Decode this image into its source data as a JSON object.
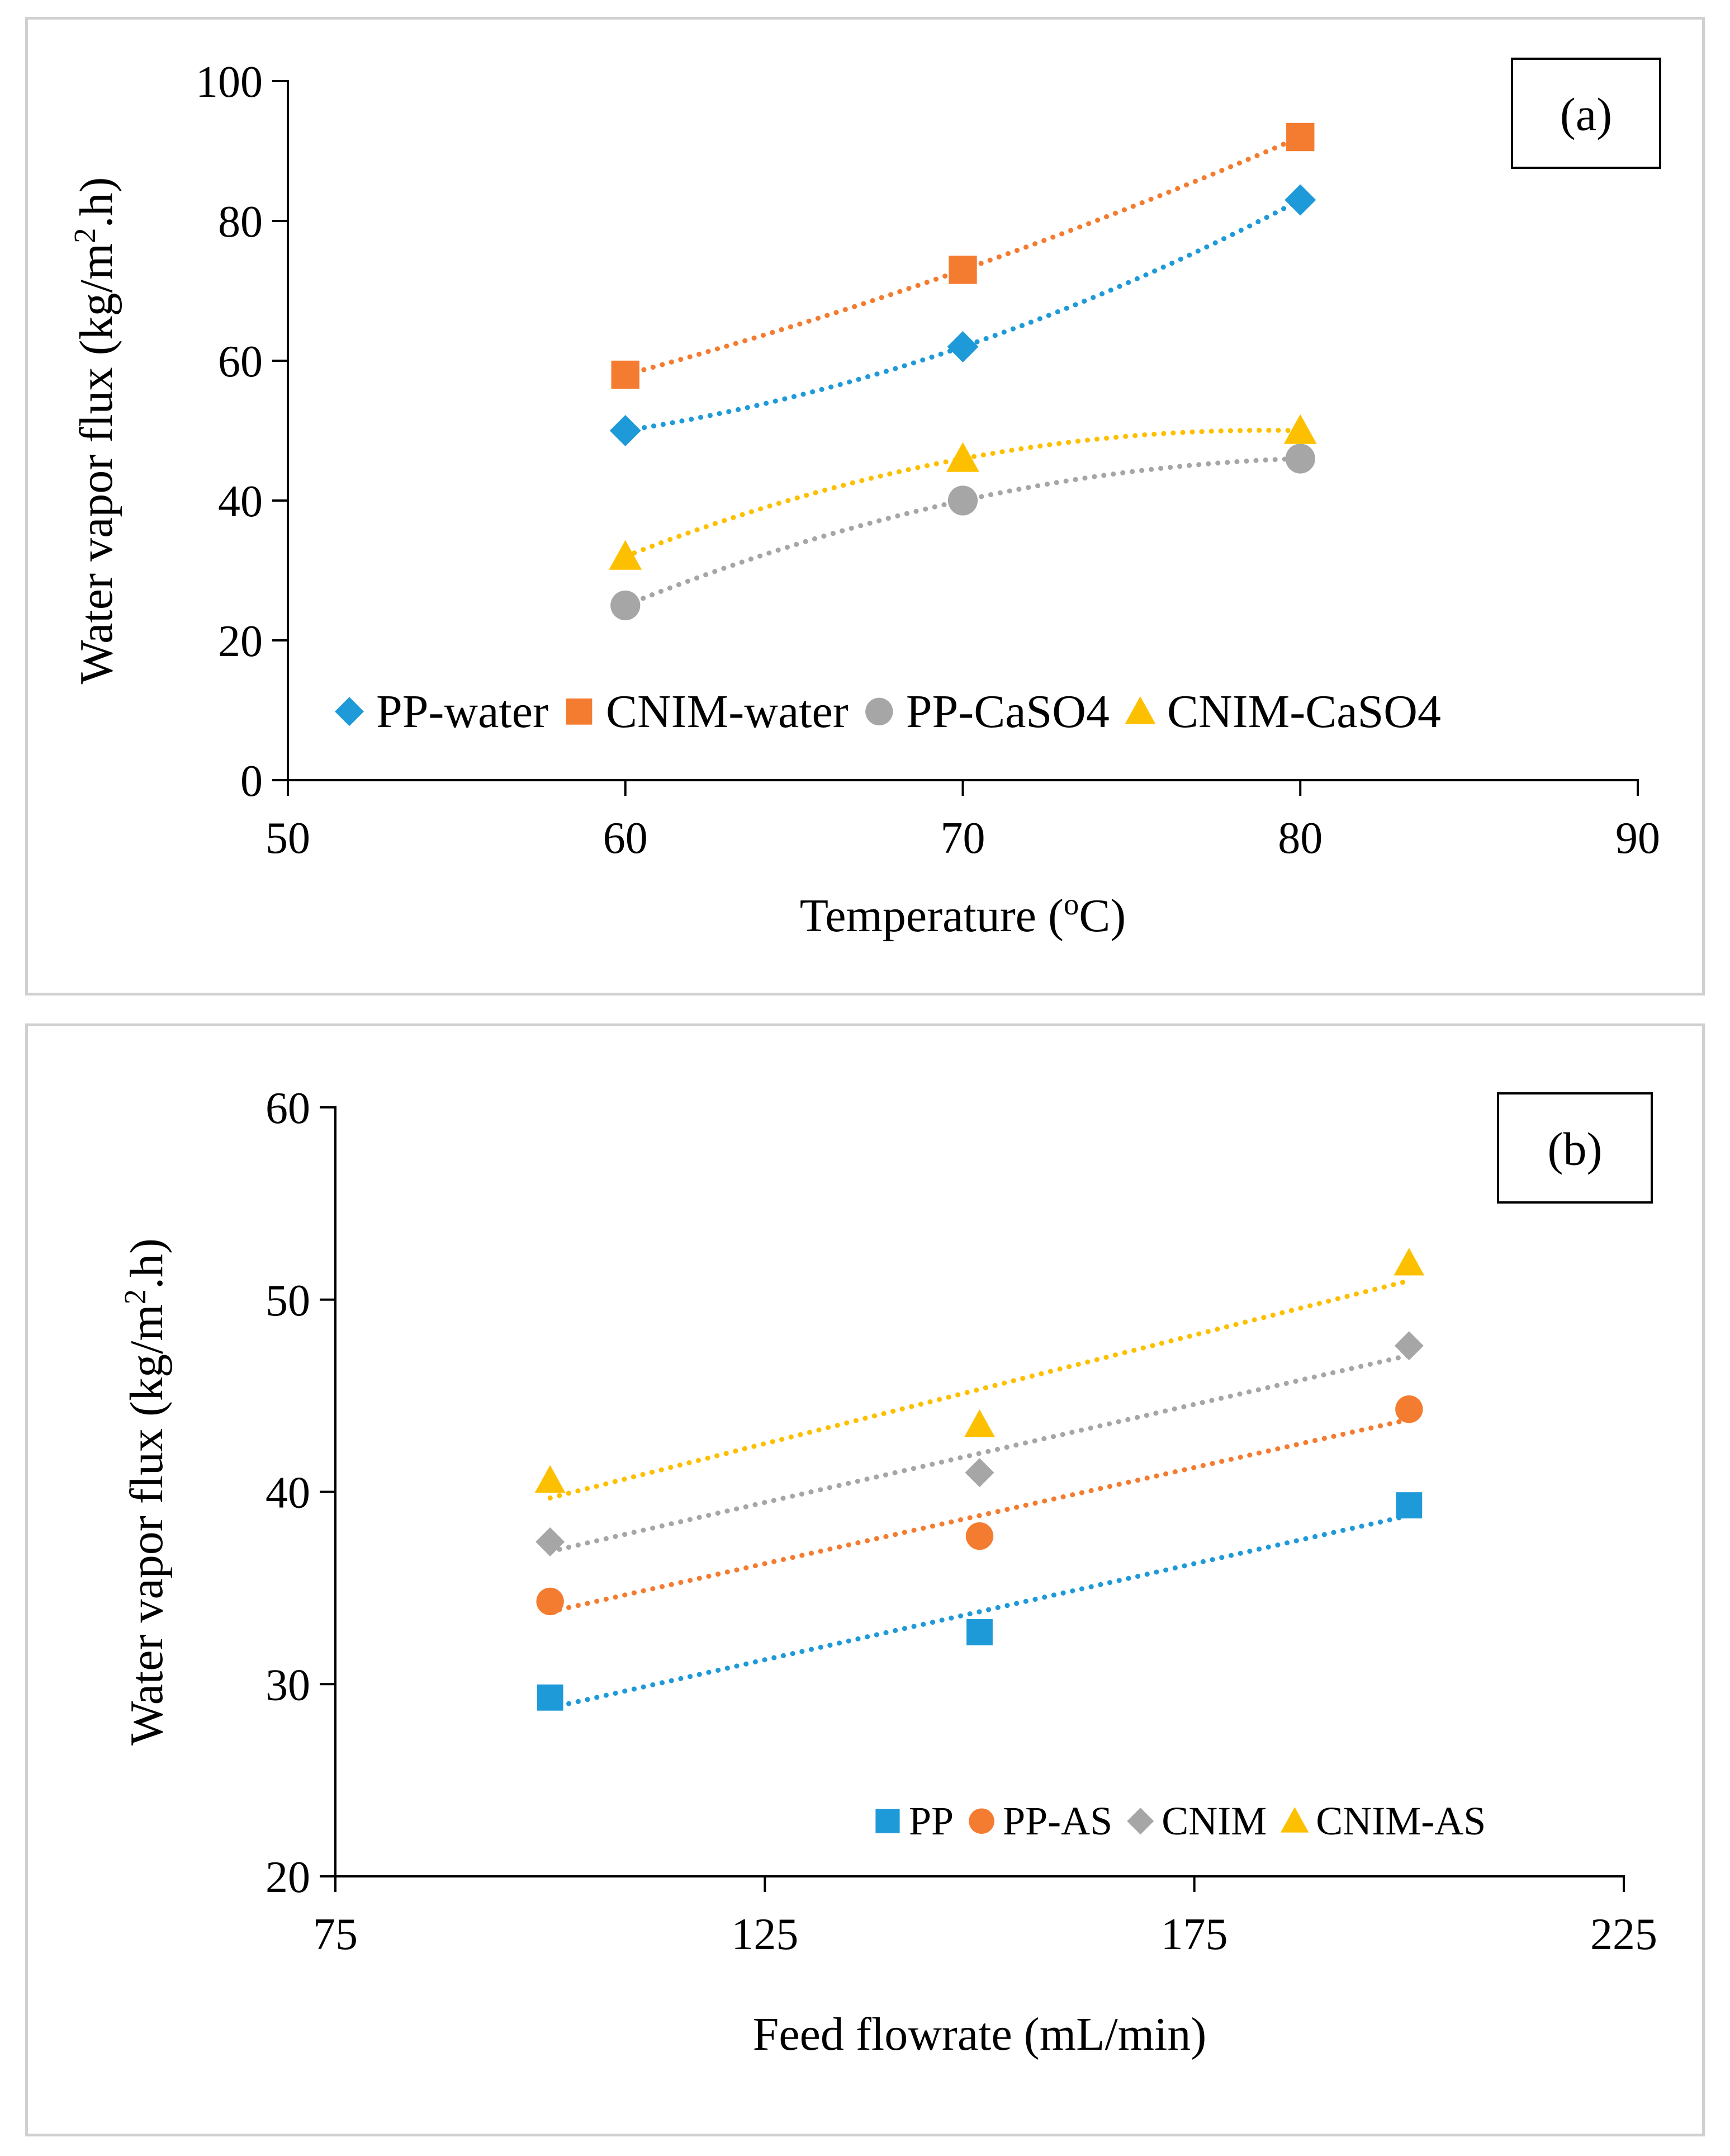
{
  "colors": {
    "blue": "#1f9ad8",
    "orange": "#f47c30",
    "gray": "#a6a6a6",
    "yellow": "#fdc000",
    "axis": "#000000",
    "frame": "#d0d0d0"
  },
  "chart_data": [
    {
      "type": "scatter",
      "panel_label": "(a)",
      "xlabel": "Temperature (",
      "xlabel_sup": "o",
      "xlabel_tail": "C)",
      "ylabel": "Water vapor flux (kg/m",
      "ylabel_sup": "2",
      "ylabel_tail": ".h)",
      "xlim": [
        50,
        90
      ],
      "ylim": [
        0,
        100
      ],
      "xticks": [
        50,
        60,
        70,
        80,
        90
      ],
      "yticks": [
        0,
        20,
        40,
        60,
        80,
        100
      ],
      "grid": false,
      "legend_position": "bottom",
      "trendline": "polynomial, dotted",
      "series": [
        {
          "name": "PP-water",
          "marker": "diamond",
          "color": "#1f9ad8",
          "x": [
            60,
            70,
            80
          ],
          "y": [
            50,
            62,
            83
          ]
        },
        {
          "name": "CNIM-water",
          "marker": "square",
          "color": "#f47c30",
          "x": [
            60,
            70,
            80
          ],
          "y": [
            58,
            73,
            92
          ]
        },
        {
          "name": "PP-CaSO4",
          "marker": "circle",
          "color": "#a6a6a6",
          "x": [
            60,
            70,
            80
          ],
          "y": [
            25,
            40,
            46
          ]
        },
        {
          "name": "CNIM-CaSO4",
          "marker": "triangle",
          "color": "#fdc000",
          "x": [
            60,
            70,
            80
          ],
          "y": [
            32,
            46,
            50
          ]
        }
      ]
    },
    {
      "type": "scatter",
      "panel_label": "(b)",
      "xlabel": "Feed flowrate (mL/min)",
      "xlabel_sup": "",
      "xlabel_tail": "",
      "ylabel": "Water vapor flux (kg/m",
      "ylabel_sup": "2",
      "ylabel_tail": ".h)",
      "xlim": [
        75,
        225
      ],
      "ylim": [
        20,
        60
      ],
      "xticks": [
        75,
        125,
        175,
        225
      ],
      "yticks": [
        20,
        30,
        40,
        50,
        60
      ],
      "grid": false,
      "legend_position": "bottom-right",
      "trendline": "linear, dotted",
      "series": [
        {
          "name": "PP",
          "marker": "square",
          "color": "#1f9ad8",
          "x": [
            100,
            150,
            200
          ],
          "y": [
            29.3,
            32.7,
            39.3
          ]
        },
        {
          "name": "PP-AS",
          "marker": "circle",
          "color": "#f47c30",
          "x": [
            100,
            150,
            200
          ],
          "y": [
            34.3,
            37.7,
            44.3
          ]
        },
        {
          "name": "CNIM",
          "marker": "diamond",
          "color": "#a6a6a6",
          "x": [
            100,
            150,
            200
          ],
          "y": [
            37.4,
            41.0,
            47.6
          ]
        },
        {
          "name": "CNIM-AS",
          "marker": "triangle",
          "color": "#fdc000",
          "x": [
            100,
            150,
            200
          ],
          "y": [
            40.6,
            43.5,
            51.9
          ]
        }
      ]
    }
  ]
}
